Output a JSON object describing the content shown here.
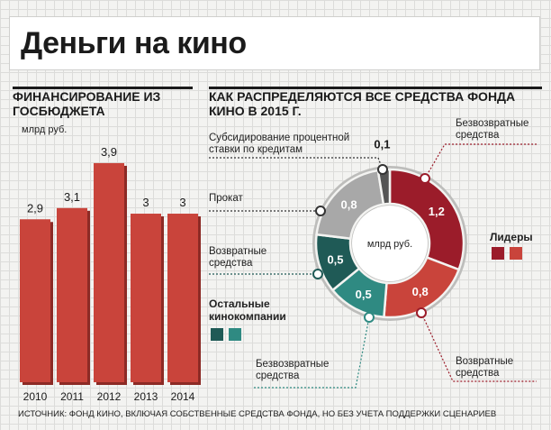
{
  "header": {
    "title": "Деньги на кино"
  },
  "bar_section": {
    "heading": "ФИНАНСИРОВАНИЕ ИЗ ГОСБЮДЖЕТА",
    "unit": "млрд руб."
  },
  "donut_section": {
    "heading": "КАК РАСПРЕДЕЛЯЮТСЯ ВСЕ СРЕДСТВА ФОНДА КИНО В 2015 Г.",
    "center_unit": "млрд руб."
  },
  "labels": {
    "subsidy": "Субсидирование процентной ставки по кредитам",
    "rental": "Прокат",
    "returnable_top": "Возвратные средства",
    "nonreturnable_bottom": "Безвозвратные средства",
    "nonreturnable_top_right": "Безвозвратные средства",
    "returnable_bottom_right": "Возвратные средства"
  },
  "legend": {
    "leaders": "Лидеры",
    "others": "Остальные кинокомпании",
    "colors": {
      "leaders_dark": "#9b1c2a",
      "leaders_light": "#c9443b",
      "others_dark": "#1f5a56",
      "others_light": "#2f8a82"
    }
  },
  "source": "ИСТОЧНИК: ФОНД КИНО, ВКЛЮЧАЯ СОБСТВЕННЫЕ СРЕДСТВА ФОНДА, НО БЕЗ УЧЕТА ПОДДЕРЖКИ СЦЕНАРИЕВ",
  "chart_data": [
    {
      "type": "bar",
      "title": "ФИНАНСИРОВАНИЕ ИЗ ГОСБЮДЖЕТА",
      "ylabel": "млрд руб.",
      "categories": [
        "2010",
        "2011",
        "2012",
        "2013",
        "2014"
      ],
      "values": [
        2.9,
        3.1,
        3.9,
        3,
        3
      ],
      "value_labels": [
        "2,9",
        "3,1",
        "3,9",
        "3",
        "3"
      ],
      "ylim": [
        0,
        4.3
      ],
      "color": "#c9443b"
    },
    {
      "type": "pie",
      "title": "КАК РАСПРЕДЕЛЯЮТСЯ ВСЕ СРЕДСТВА ФОНДА КИНО В 2015 Г.",
      "donut": true,
      "slices": [
        {
          "label": "Безвозвратные средства (Лидеры)",
          "value": 1.2,
          "value_label": "1,2",
          "color": "#9b1c2a"
        },
        {
          "label": "Возвратные средства (Лидеры)",
          "value": 0.8,
          "value_label": "0,8",
          "color": "#c9443b"
        },
        {
          "label": "Безвозвратные средства (Остальные кинокомпании)",
          "value": 0.5,
          "value_label": "0,5",
          "color": "#2f8a82"
        },
        {
          "label": "Возвратные средства (Остальные кинокомпании)",
          "value": 0.5,
          "value_label": "0,5",
          "color": "#1f5a56"
        },
        {
          "label": "Прокат",
          "value": 0.8,
          "value_label": "0,8",
          "color": "#a8a8a8"
        },
        {
          "label": "Субсидирование процентной ставки по кредитам",
          "value": 0.1,
          "value_label": "0,1",
          "color": "#555555"
        }
      ]
    }
  ]
}
